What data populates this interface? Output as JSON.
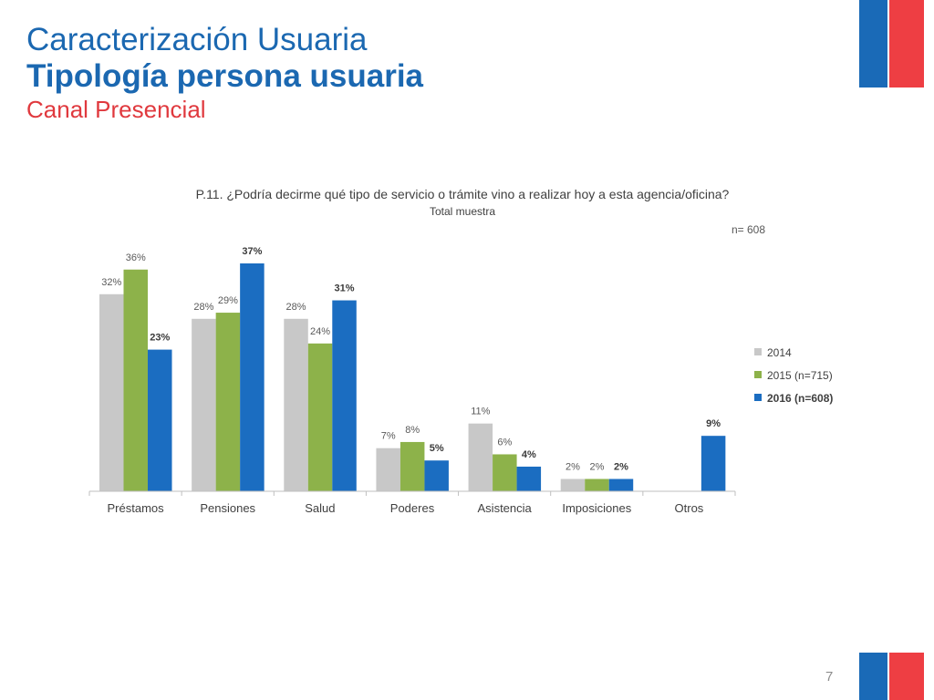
{
  "header": {
    "title": "Caracterización Usuaria",
    "subtitle": "Tipología persona usuaria",
    "channel": "Canal Presencial"
  },
  "footer": {
    "page_number": "7"
  },
  "colors": {
    "brand_blue": "#1a6ab7",
    "brand_red": "#ee3e43"
  },
  "chart_data": {
    "type": "bar",
    "title": "P.11. ¿Podría decirme qué tipo de servicio o trámite vino a realizar hoy a esta agencia/oficina?",
    "subtitle": "Total muestra",
    "sample_note": "n= 608",
    "categories": [
      "Préstamos",
      "Pensiones",
      "Salud",
      "Poderes",
      "Asistencia",
      "Imposiciones",
      "Otros"
    ],
    "series": [
      {
        "name": "2014",
        "color": "#c8c8c8",
        "values": [
          32,
          28,
          28,
          7,
          11,
          2,
          null
        ],
        "labels": [
          "32%",
          "28%",
          "28%",
          "7%",
          "11%",
          "2%",
          ""
        ],
        "bold": false
      },
      {
        "name": "2015 (n=715)",
        "color": "#8db24a",
        "values": [
          36,
          29,
          24,
          8,
          6,
          2,
          null
        ],
        "labels": [
          "36%",
          "29%",
          "24%",
          "8%",
          "6%",
          "2%",
          ""
        ],
        "bold": false
      },
      {
        "name": "2016 (n=608)",
        "color": "#1b6dc1",
        "values": [
          23,
          37,
          31,
          5,
          4,
          2,
          9
        ],
        "labels": [
          "23%",
          "37%",
          "31%",
          "5%",
          "4%",
          "2%",
          "9%"
        ],
        "bold": true
      }
    ],
    "ylim": [
      0,
      37
    ],
    "grid": false,
    "legend_position": "right"
  }
}
